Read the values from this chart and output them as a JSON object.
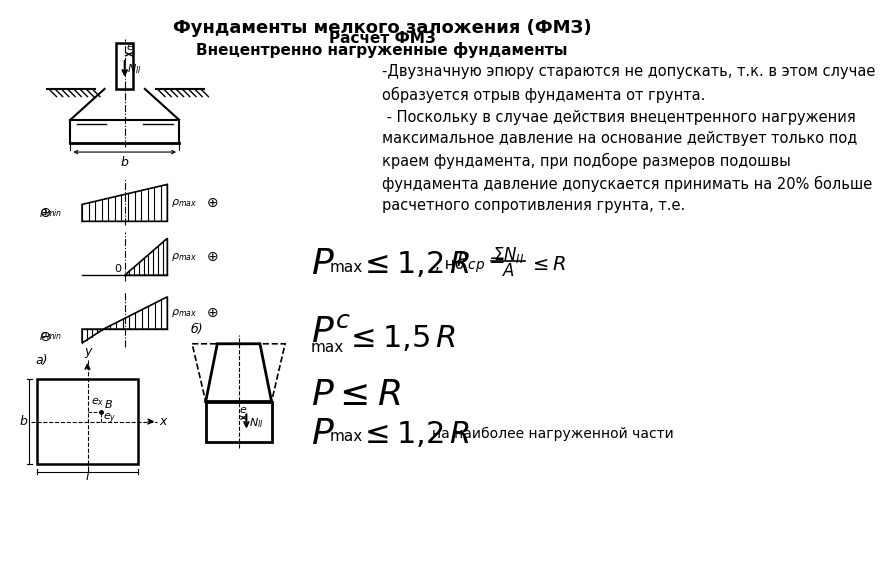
{
  "title_line1": "Фундаменты мелкого заложения (ФМЗ)",
  "title_line2": "Расчет ФМЗ",
  "title_line3": "Внецентренно нагруженные фундаменты",
  "text1": "-Двузначную эпюру стараются не допускать, т.к. в этом случае\nобразуется отрыв фундамента от грунта.",
  "text2": " - Поскольку в случае действия внецентренного нагружения\nмаксимальное давление на основание действует только под\nкраем фундамента, при подборе размеров подошвы\nфундамента давление допускается принимать на 20% больше\nрасчетного сопротивления грунта, т.е.",
  "text_no": ", но",
  "text_naib": "на наиболее нагруженной части",
  "bg_color": "#ffffff",
  "line_color": "#000000"
}
